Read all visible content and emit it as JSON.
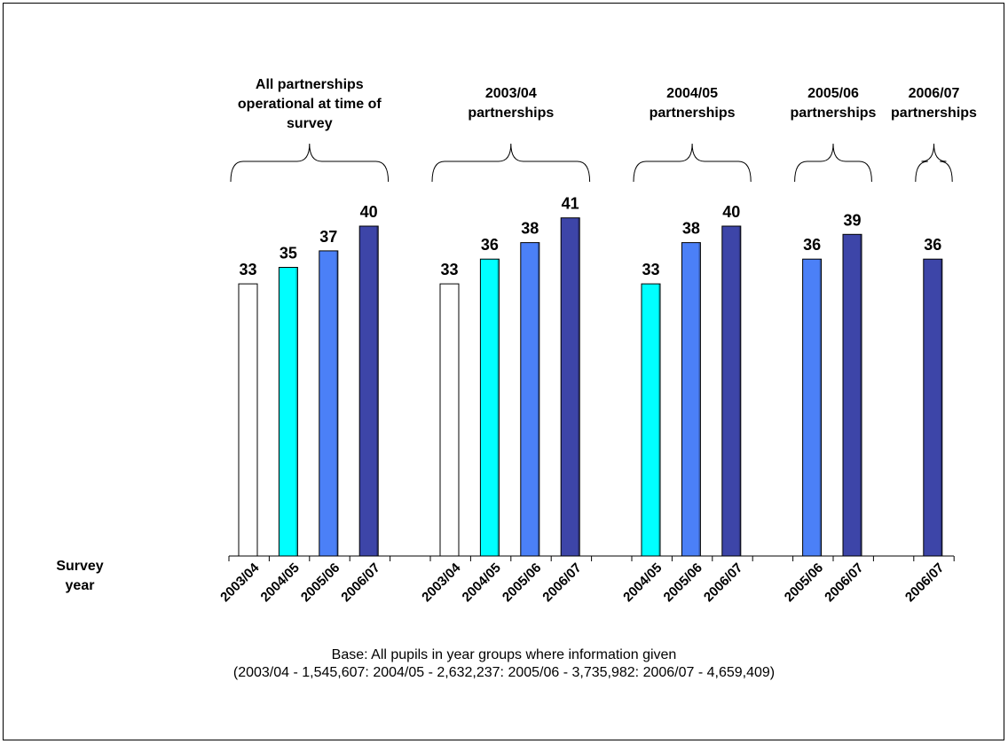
{
  "chart_data": {
    "type": "bar",
    "group_labels": [
      "All partnerships operational at time of survey",
      "2003/04 partnerships",
      "2004/05 partnerships",
      "2005/06 partnerships",
      "2006/07 partnerships"
    ],
    "groups": [
      {
        "categories": [
          "2003/04",
          "2004/05",
          "2005/06",
          "2006/07"
        ],
        "values": [
          33,
          35,
          37,
          40
        ]
      },
      {
        "categories": [
          "2003/04",
          "2004/05",
          "2005/06",
          "2006/07"
        ],
        "values": [
          33,
          36,
          38,
          41
        ]
      },
      {
        "categories": [
          "2004/05",
          "2005/06",
          "2006/07"
        ],
        "values": [
          33,
          38,
          40
        ]
      },
      {
        "categories": [
          "2005/06",
          "2006/07"
        ],
        "values": [
          36,
          39
        ]
      },
      {
        "categories": [
          "2006/07"
        ],
        "values": [
          36
        ]
      }
    ],
    "series_colors": {
      "2003/04": "#ffffff",
      "2004/05": "#00ffff",
      "2005/06": "#4b80f7",
      "2006/07": "#3d45a8"
    },
    "xlabel": "Survey year",
    "ylim": [
      0,
      45
    ],
    "grid": false,
    "legend": "none"
  },
  "footnote": {
    "line1": "Base: All pupils in year groups where information given",
    "line2": "(2003/04  - 1,545,607:  2004/05  - 2,632,237:  2005/06  - 3,735,982: 2006/07  - 4,659,409)"
  }
}
